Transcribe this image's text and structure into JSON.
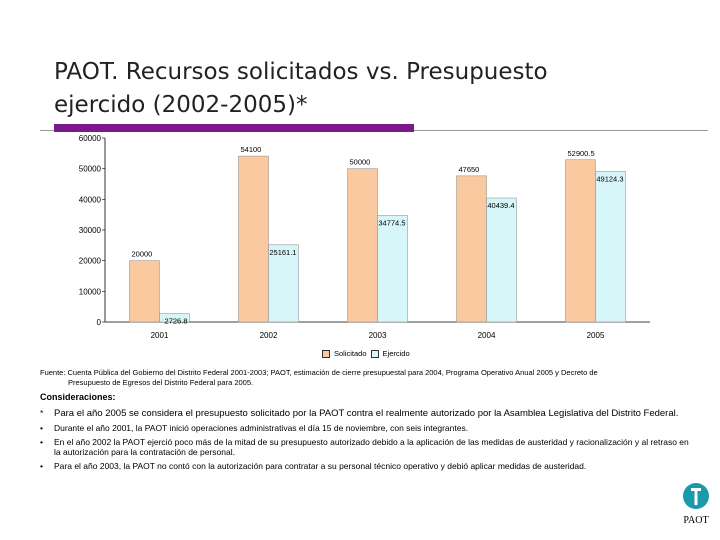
{
  "slide": {
    "title_line1": "PAOT. Recursos solicitados vs. Presupuesto",
    "title_line2": "ejercido (2002-2005)*"
  },
  "colors": {
    "accent": "#7a1a8a",
    "solicitado": "#fbc9a0",
    "ejercido": "#d6f6f9"
  },
  "chart_data": {
    "type": "bar",
    "categories": [
      "2001",
      "2002",
      "2003",
      "2004",
      "2005"
    ],
    "series": [
      {
        "name": "Solicitado",
        "values": [
          20000,
          54100,
          50000,
          47650,
          52900.5
        ],
        "labels": [
          "20000",
          "54100",
          "50000",
          "47650",
          "52900.5"
        ]
      },
      {
        "name": "Ejercido",
        "values": [
          2726.8,
          25161.1,
          34774.5,
          40439.4,
          49124.3
        ],
        "labels": [
          "2726.8",
          "25161.1",
          "34774.5",
          "40439.4",
          "49124.3"
        ]
      }
    ],
    "yticks": [
      "60000",
      "50000",
      "40000",
      "30000",
      "20000",
      "10000",
      "0"
    ],
    "ylim": [
      0,
      60000
    ],
    "legend_position": "bottom"
  },
  "source": {
    "line1": "Fuente: Cuenta Pública del Gobierno del Distrito Federal 2001-2003; PAOT, estimación de cierre presupuestal para 2004, Programa Operativo Anual 2005 y Decreto de",
    "line2": "Presupuesto de Egresos del Distrito Federal para 2005."
  },
  "considerations": {
    "title": "Consideraciones:",
    "items": [
      {
        "bullet": "*",
        "text": "Para el año 2005 se considera el presupuesto solicitado por la PAOT contra el realmente autorizado por la Asamblea Legislativa del Distrito Federal."
      },
      {
        "bullet": "•",
        "text": "Durante el año 2001, la PAOT inició operaciones administrativas el día 15 de noviembre, con seis integrantes."
      },
      {
        "bullet": "•",
        "text": "En el año 2002 la PAOT ejerció poco más de la mitad de su presupuesto autorizado debido a la aplicación de las medidas de austeridad y racionalización y al retraso en la autorización para la contratación de personal."
      },
      {
        "bullet": "•",
        "text": "Para el año 2003, la PAOT no contó con la autorización para contratar a su personal técnico operativo y debió aplicar medidas de austeridad."
      }
    ]
  },
  "logo": {
    "icon": "paot-logo-icon",
    "text": "PAOT"
  }
}
